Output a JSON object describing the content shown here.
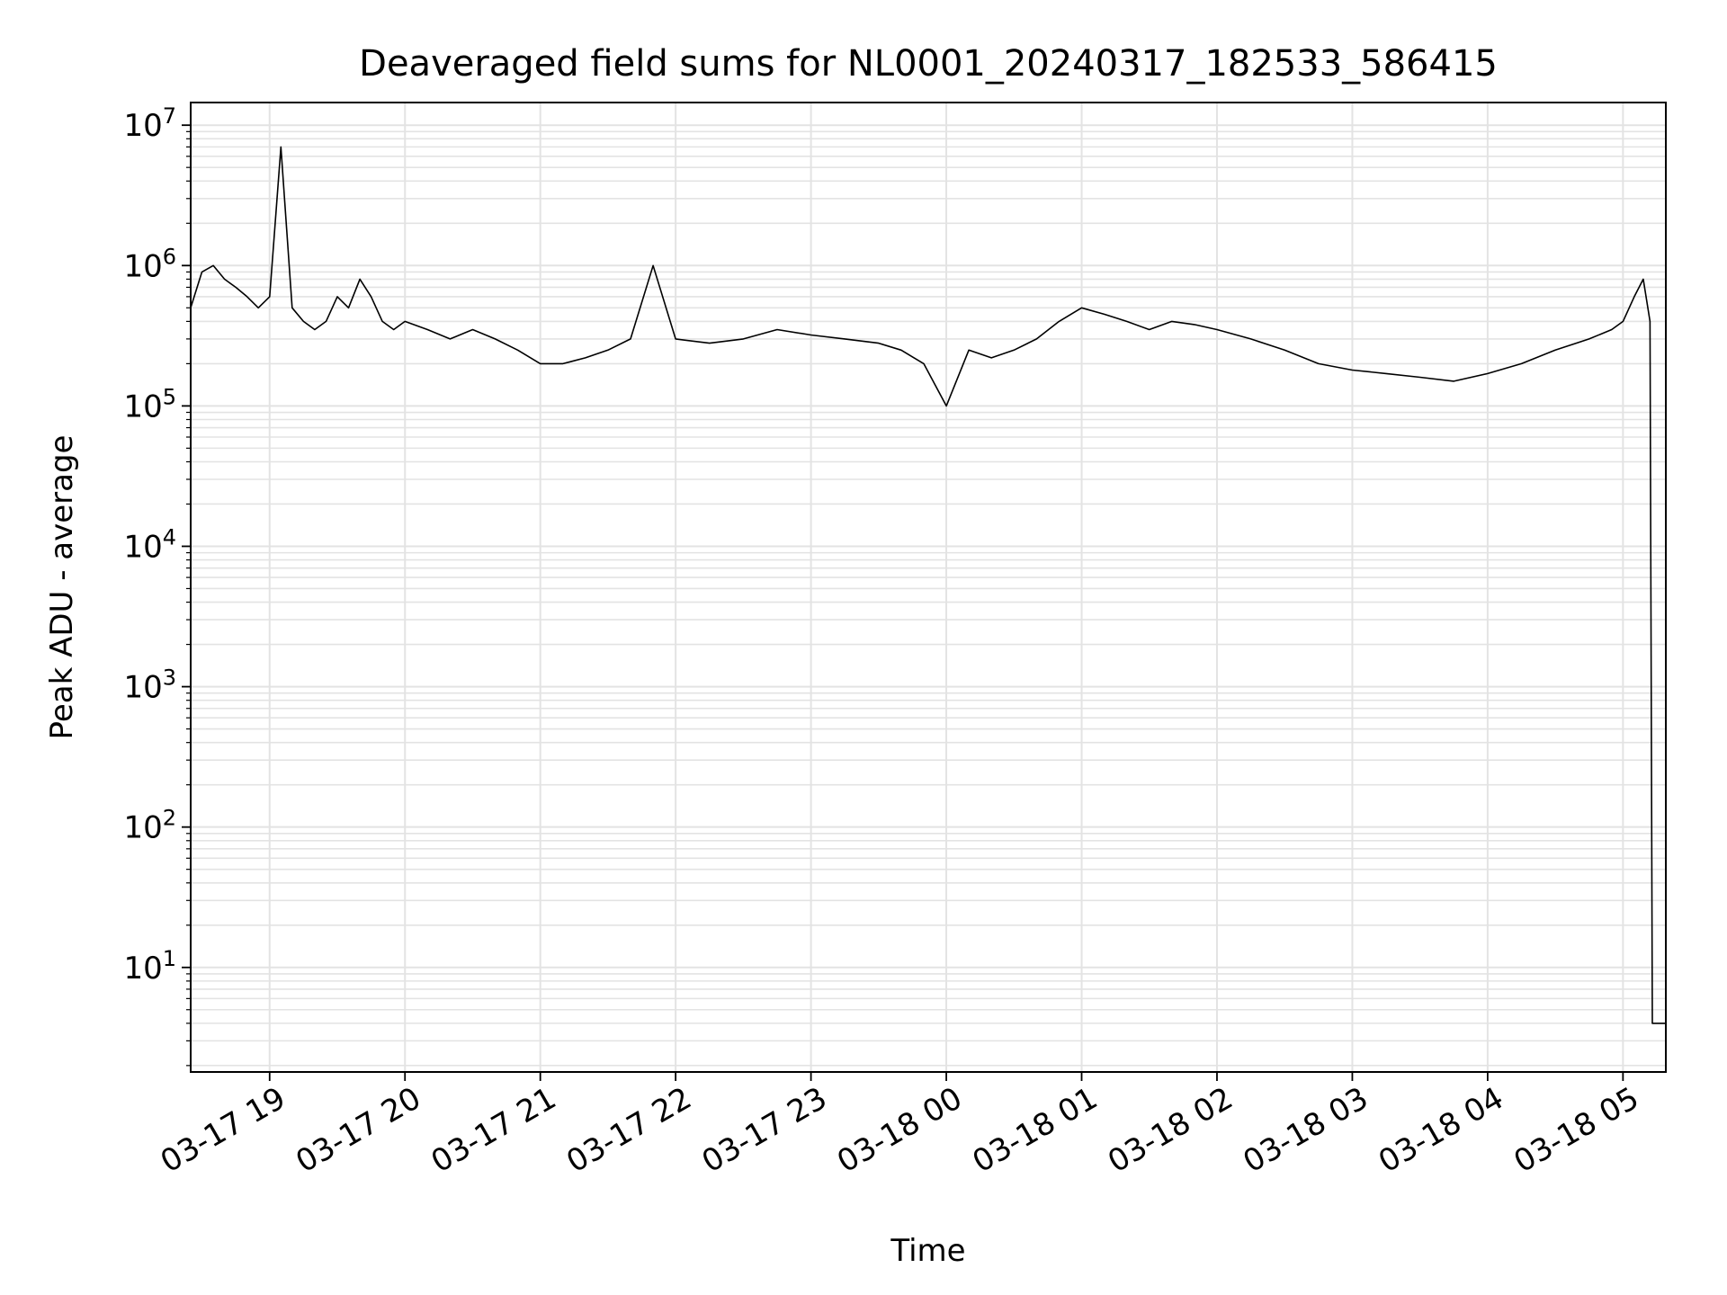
{
  "chart_data": {
    "type": "line",
    "title": "Deaveraged field sums for NL0001_20240317_182533_586415",
    "xlabel": "Time",
    "ylabel": "Peak ADU - average",
    "y_scale": "log",
    "ylim": [
      1.8,
      14500000
    ],
    "xlim": [
      "2024-03-17 18:25",
      "2024-03-18 05:19"
    ],
    "grid": true,
    "x_ticks": [
      {
        "t": "2024-03-17 19:00",
        "label": "03-17 19"
      },
      {
        "t": "2024-03-17 20:00",
        "label": "03-17 20"
      },
      {
        "t": "2024-03-17 21:00",
        "label": "03-17 21"
      },
      {
        "t": "2024-03-17 22:00",
        "label": "03-17 22"
      },
      {
        "t": "2024-03-17 23:00",
        "label": "03-17 23"
      },
      {
        "t": "2024-03-18 00:00",
        "label": "03-18 00"
      },
      {
        "t": "2024-03-18 01:00",
        "label": "03-18 01"
      },
      {
        "t": "2024-03-18 02:00",
        "label": "03-18 02"
      },
      {
        "t": "2024-03-18 03:00",
        "label": "03-18 03"
      },
      {
        "t": "2024-03-18 04:00",
        "label": "03-18 04"
      },
      {
        "t": "2024-03-18 05:00",
        "label": "03-18 05"
      }
    ],
    "y_ticks": [
      {
        "value": 10,
        "base": "10",
        "exp": "1"
      },
      {
        "value": 100,
        "base": "10",
        "exp": "2"
      },
      {
        "value": 1000,
        "base": "10",
        "exp": "3"
      },
      {
        "value": 10000,
        "base": "10",
        "exp": "4"
      },
      {
        "value": 100000,
        "base": "10",
        "exp": "5"
      },
      {
        "value": 1000000,
        "base": "10",
        "exp": "6"
      },
      {
        "value": 10000000,
        "base": "10",
        "exp": "7"
      }
    ],
    "series": [
      {
        "color": "#000000",
        "x": [
          "2024-03-17 18:25",
          "2024-03-17 18:30",
          "2024-03-17 18:35",
          "2024-03-17 18:40",
          "2024-03-17 18:45",
          "2024-03-17 18:50",
          "2024-03-17 18:55",
          "2024-03-17 19:00",
          "2024-03-17 19:05",
          "2024-03-17 19:10",
          "2024-03-17 19:15",
          "2024-03-17 19:20",
          "2024-03-17 19:25",
          "2024-03-17 19:30",
          "2024-03-17 19:35",
          "2024-03-17 19:40",
          "2024-03-17 19:45",
          "2024-03-17 19:50",
          "2024-03-17 19:55",
          "2024-03-17 20:00",
          "2024-03-17 20:10",
          "2024-03-17 20:20",
          "2024-03-17 20:30",
          "2024-03-17 20:40",
          "2024-03-17 20:50",
          "2024-03-17 21:00",
          "2024-03-17 21:10",
          "2024-03-17 21:20",
          "2024-03-17 21:30",
          "2024-03-17 21:40",
          "2024-03-17 21:50",
          "2024-03-17 22:00",
          "2024-03-17 22:15",
          "2024-03-17 22:30",
          "2024-03-17 22:45",
          "2024-03-17 23:00",
          "2024-03-17 23:15",
          "2024-03-17 23:30",
          "2024-03-17 23:40",
          "2024-03-17 23:50",
          "2024-03-18 00:00",
          "2024-03-18 00:10",
          "2024-03-18 00:20",
          "2024-03-18 00:30",
          "2024-03-18 00:40",
          "2024-03-18 00:50",
          "2024-03-18 01:00",
          "2024-03-18 01:10",
          "2024-03-18 01:20",
          "2024-03-18 01:30",
          "2024-03-18 01:40",
          "2024-03-18 01:50",
          "2024-03-18 02:00",
          "2024-03-18 02:15",
          "2024-03-18 02:30",
          "2024-03-18 02:45",
          "2024-03-18 03:00",
          "2024-03-18 03:15",
          "2024-03-18 03:30",
          "2024-03-18 03:45",
          "2024-03-18 04:00",
          "2024-03-18 04:15",
          "2024-03-18 04:30",
          "2024-03-18 04:45",
          "2024-03-18 04:55",
          "2024-03-18 05:00",
          "2024-03-18 05:05",
          "2024-03-18 05:09",
          "2024-03-18 05:12",
          "2024-03-18 05:13",
          "2024-03-18 05:19"
        ],
        "y": [
          500000,
          900000,
          1000000,
          800000,
          700000,
          600000,
          500000,
          600000,
          7000000,
          500000,
          400000,
          350000,
          400000,
          600000,
          500000,
          800000,
          600000,
          400000,
          350000,
          400000,
          350000,
          300000,
          350000,
          300000,
          250000,
          200000,
          200000,
          220000,
          250000,
          300000,
          1000000,
          300000,
          280000,
          300000,
          350000,
          320000,
          300000,
          280000,
          250000,
          200000,
          100000,
          250000,
          220000,
          250000,
          300000,
          400000,
          500000,
          450000,
          400000,
          350000,
          400000,
          380000,
          350000,
          300000,
          250000,
          200000,
          180000,
          170000,
          160000,
          150000,
          170000,
          200000,
          250000,
          300000,
          350000,
          400000,
          600000,
          800000,
          400000,
          4,
          4
        ]
      }
    ]
  }
}
